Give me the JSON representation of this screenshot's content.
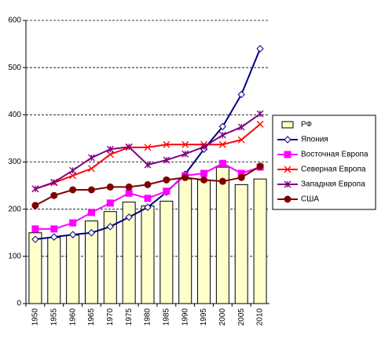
{
  "chart_data": {
    "type": "combo",
    "categories": [
      "1950",
      "1955",
      "1960",
      "1965",
      "1970",
      "1975",
      "1980",
      "1985",
      "1990",
      "1995",
      "2000",
      "2005",
      "2010"
    ],
    "ylim": [
      0,
      600
    ],
    "yticks": [
      0,
      100,
      200,
      300,
      400,
      500,
      600
    ],
    "grid": true,
    "legend": "right",
    "series": [
      {
        "name": "РФ",
        "type": "bar",
        "color": "#ffffcc",
        "values": [
          150,
          140,
          145,
          175,
          195,
          215,
          207,
          217,
          264,
          262,
          289,
          252,
          264
        ]
      },
      {
        "name": "Япония",
        "type": "line",
        "marker": "diamond",
        "color": "#000080",
        "values": [
          136,
          141,
          146,
          150,
          163,
          183,
          204,
          236,
          274,
          327,
          375,
          443,
          540
        ]
      },
      {
        "name": "Восточная Европа",
        "type": "line",
        "marker": "square",
        "color": "#ff00ff",
        "values": [
          158,
          158,
          171,
          193,
          213,
          234,
          223,
          238,
          271,
          276,
          297,
          276,
          289
        ]
      },
      {
        "name": "Северная Европа",
        "type": "line",
        "marker": "x",
        "color": "#ff0000",
        "values": [
          243,
          256,
          271,
          286,
          316,
          331,
          331,
          337,
          337,
          337,
          337,
          347,
          380
        ]
      },
      {
        "name": "Западная Европа",
        "type": "line",
        "marker": "star",
        "color": "#800080",
        "values": [
          243,
          257,
          282,
          309,
          327,
          332,
          294,
          304,
          317,
          332,
          357,
          374,
          402
        ]
      },
      {
        "name": "США",
        "type": "line",
        "marker": "circle",
        "color": "#800000",
        "values": [
          208,
          229,
          241,
          241,
          247,
          247,
          252,
          262,
          267,
          262,
          259,
          267,
          291
        ]
      }
    ]
  }
}
